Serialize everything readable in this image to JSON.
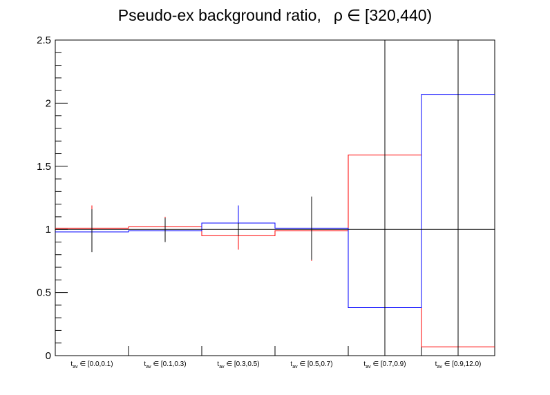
{
  "chart_data": {
    "type": "histogram-step",
    "title": {
      "main": "Pseudo-ex background ratio,",
      "symbol": "ρ",
      "relation": "∈",
      "range": "[320,440)"
    },
    "xlabel": "",
    "ylabel": "",
    "ylim": [
      0,
      2.5
    ],
    "yticks": [
      0,
      0.5,
      1,
      1.5,
      2,
      2.5
    ],
    "ytick_labels": [
      "0",
      "0.5",
      "1",
      "1.5",
      "2",
      "2.5"
    ],
    "categories": [
      {
        "var": "t",
        "sub": "av",
        "op": "∈",
        "range": "[0.0,0.1)"
      },
      {
        "var": "t",
        "sub": "av",
        "op": "∈",
        "range": "[0.1,0.3)"
      },
      {
        "var": "t",
        "sub": "av",
        "op": "∈",
        "range": "[0.3,0.5)"
      },
      {
        "var": "t",
        "sub": "av",
        "op": "∈",
        "range": "[0.5,0.7)"
      },
      {
        "var": "t",
        "sub": "av",
        "op": "∈",
        "range": "[0.7,0.9)"
      },
      {
        "var": "t",
        "sub": "av",
        "op": "∈",
        "range": "[0.9,12.0)"
      }
    ],
    "reference_line": 1,
    "series": [
      {
        "color": "#ff0000",
        "values": [
          1.01,
          1.02,
          0.95,
          0.99,
          1.59,
          0.07
        ],
        "err_low": [
          1.01,
          0.94,
          0.84,
          0.75,
          1.9,
          0.07
        ],
        "err_high": [
          1.19,
          1.1,
          0.95,
          0.99,
          2.5,
          0.07
        ]
      },
      {
        "color": "#0000ff",
        "values": [
          0.98,
          0.99,
          1.05,
          1.01,
          0.38,
          2.07
        ],
        "err_low": [
          0.98,
          0.99,
          1.05,
          1.01,
          0.38,
          2.07
        ],
        "err_high": [
          0.98,
          0.99,
          1.19,
          1.01,
          0.38,
          2.07
        ]
      },
      {
        "color": "#000000",
        "values": [
          null,
          null,
          null,
          null,
          null,
          null
        ],
        "err_low": [
          0.82,
          0.9,
          0.95,
          0.76,
          0.0,
          0.0
        ],
        "err_high": [
          1.16,
          1.09,
          1.05,
          1.26,
          2.5,
          2.5
        ]
      }
    ],
    "grid": false,
    "legend": "none"
  }
}
